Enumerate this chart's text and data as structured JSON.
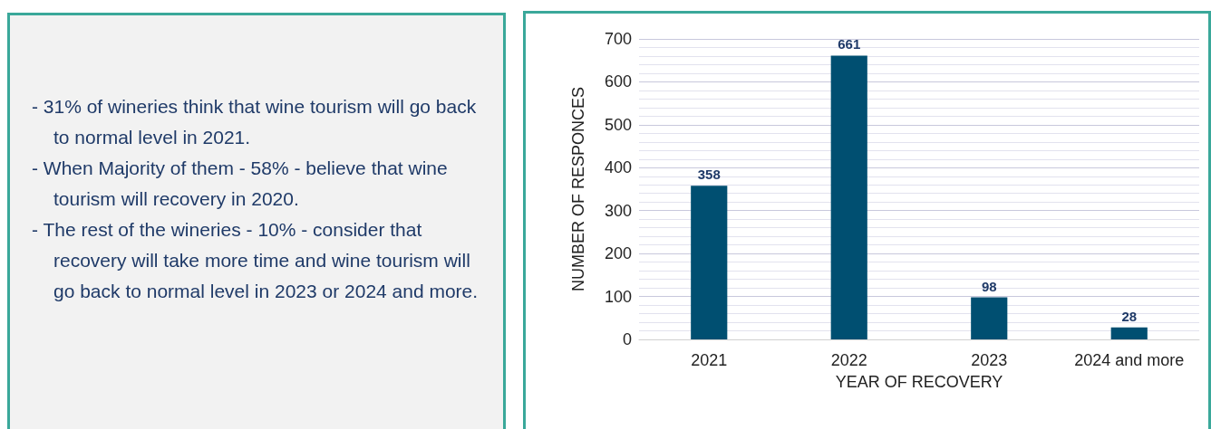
{
  "chart_data": [
    {
      "type": "other",
      "annotations": [
        "- 31% of wineries think that wine tourism will go back to normal level in 2021.",
        "- When Majority of them - 58% - believe that wine tourism will recovery in 2020.",
        "- The rest of the wineries - 10% - consider that recovery will take more time and wine tourism will go back to normal level in 2023 or 2024 and more."
      ]
    },
    {
      "type": "bar",
      "xlabel": "YEAR OF RECOVERY",
      "ylabel": "NUMBER OF RESPONCES",
      "categories": [
        "2021",
        "2022",
        "2023",
        "2024 and more"
      ],
      "values": [
        358,
        661,
        98,
        28
      ],
      "color": "#004f71",
      "ylim": [
        0,
        700
      ],
      "yticks": [
        0,
        100,
        200,
        300,
        400,
        500,
        600,
        700
      ],
      "grid": "y",
      "data_labels": true
    }
  ]
}
